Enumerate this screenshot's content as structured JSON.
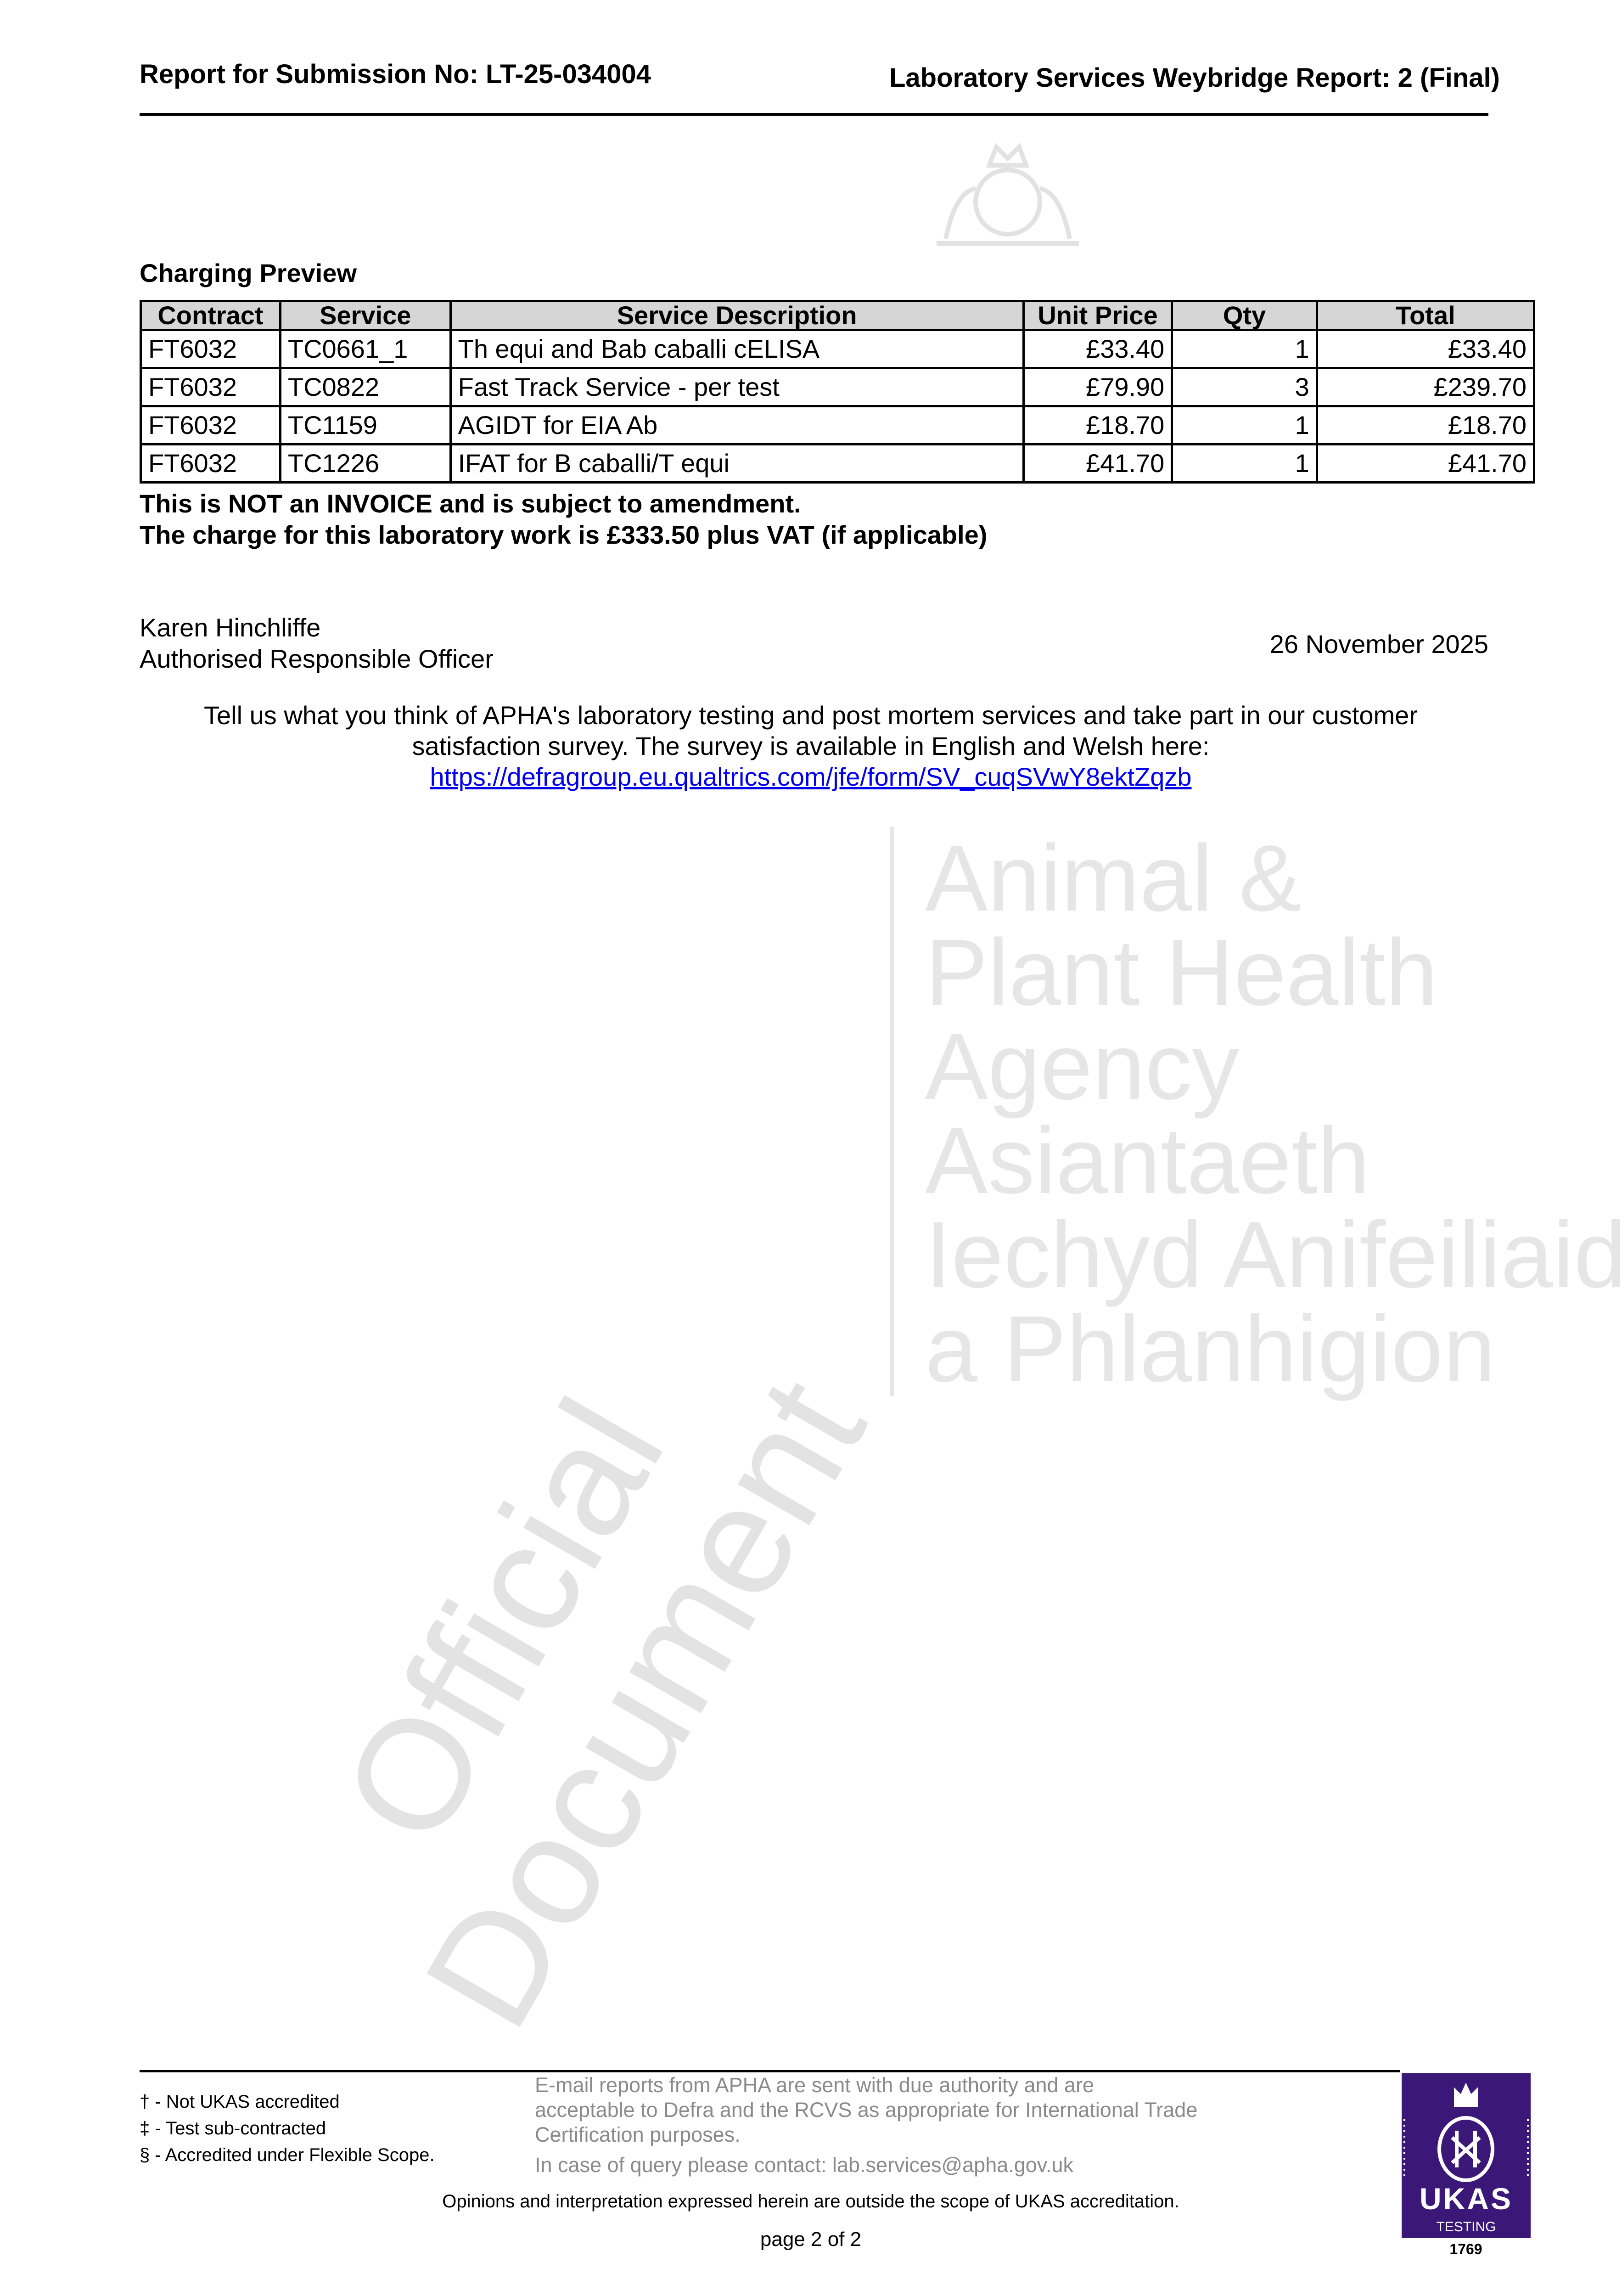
{
  "header": {
    "left": "Report for Submission No: LT-25-034004",
    "right": "Laboratory Services Weybridge Report: 2 (Final)"
  },
  "watermark": {
    "lines": [
      "Animal &",
      "Plant Health",
      "Agency",
      "Asiantaeth",
      "Iechyd Anifeiliaid",
      "a Phlanhigion"
    ],
    "diagonal": [
      "Official",
      "Document"
    ]
  },
  "charging": {
    "title": "Charging Preview",
    "columns": [
      "Contract",
      "Service",
      "Service Description",
      "Unit Price",
      "Qty",
      "Total"
    ],
    "rows": [
      [
        "FT6032",
        "TC0661_1",
        "Th equi and Bab caballi cELISA",
        "£33.40",
        "1",
        "£33.40"
      ],
      [
        "FT6032",
        "TC0822",
        "Fast Track Service - per test",
        "£79.90",
        "3",
        "£239.70"
      ],
      [
        "FT6032",
        "TC1159",
        "AGIDT for EIA Ab",
        "£18.70",
        "1",
        "£18.70"
      ],
      [
        "FT6032",
        "TC1226",
        "IFAT for B caballi/T equi",
        "£41.70",
        "1",
        "£41.70"
      ]
    ],
    "notice1": "This is NOT an INVOICE and is subject to amendment.",
    "notice2": "The charge for this laboratory work is £333.50 plus VAT (if applicable)"
  },
  "signature": {
    "name": "Karen Hinchliffe",
    "role": "Authorised Responsible Officer",
    "date": "26 November 2025"
  },
  "survey": {
    "line1": "Tell us what you think of APHA's laboratory testing and post mortem services and take part in our customer",
    "line2": "satisfaction survey. The survey is available in English and Welsh here:",
    "link": "https://defragroup.eu.qualtrics.com/jfe/form/SV_cuqSVwY8ektZqzb"
  },
  "footer": {
    "footnotes": [
      "† - Not UKAS accredited",
      "‡ - Test sub-contracted",
      "§ - Accredited under Flexible Scope."
    ],
    "email_note": [
      "E-mail reports from APHA are sent with due authority and are",
      "acceptable to Defra and the RCVS as appropriate for International Trade",
      "Certification purposes."
    ],
    "contact": "In case of query please contact: lab.services@apha.gov.uk",
    "opinions": "Opinions and interpretation expressed herein are outside the scope of UKAS accreditation.",
    "page": "page 2 of 2",
    "ukas": {
      "name": "UKAS",
      "sub": "TESTING",
      "number": "1769",
      "color": "#3b1878"
    }
  }
}
